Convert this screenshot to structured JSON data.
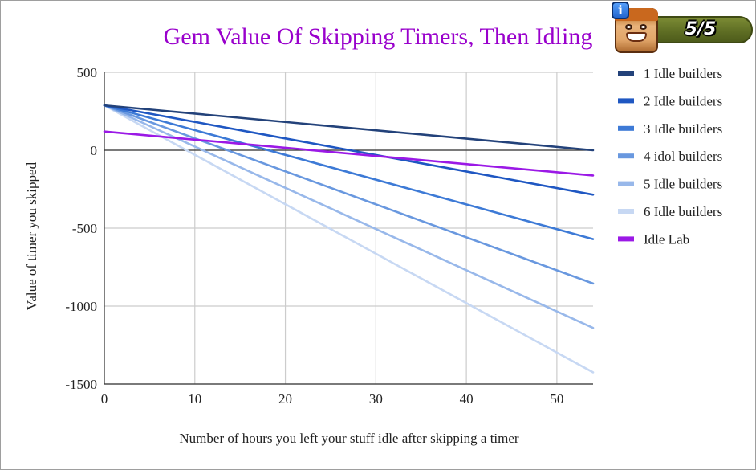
{
  "builder_badge": {
    "count_text": "5/5",
    "info_icon": "info-icon",
    "avatar_icon": "builder-face-icon"
  },
  "chart_data": {
    "type": "line",
    "title": "Gem Value Of Skipping Timers, Then Idling",
    "title_color": "#9900cc",
    "xlabel": "Number of hours you left your stuff idle after skipping a timer",
    "ylabel": "Value of timer you skipped",
    "xlim": [
      0,
      54
    ],
    "ylim": [
      -1500,
      500
    ],
    "x_ticks": [
      0,
      10,
      20,
      30,
      40,
      50
    ],
    "y_ticks": [
      500,
      0,
      -500,
      -1000,
      -1500
    ],
    "grid": true,
    "legend_position": "right",
    "series": [
      {
        "name": "1 Idle builders",
        "color": "#23427a",
        "x": [
          0,
          54
        ],
        "y": [
          288,
          0
        ]
      },
      {
        "name": "2 Idle builders",
        "color": "#1f57c2",
        "x": [
          0,
          54
        ],
        "y": [
          288,
          -285
        ]
      },
      {
        "name": "3 Idle builders",
        "color": "#3d7ad6",
        "x": [
          0,
          54
        ],
        "y": [
          288,
          -570
        ]
      },
      {
        "name": "4 idol builders",
        "color": "#6998df",
        "x": [
          0,
          54
        ],
        "y": [
          288,
          -855
        ]
      },
      {
        "name": "5 Idle builders",
        "color": "#98b8ea",
        "x": [
          0,
          54
        ],
        "y": [
          288,
          -1140
        ]
      },
      {
        "name": "6 Idle builders",
        "color": "#c7d8f3",
        "x": [
          0,
          54
        ],
        "y": [
          288,
          -1425
        ]
      },
      {
        "name": "Idle Lab",
        "color": "#9b19e6",
        "x": [
          0,
          54
        ],
        "y": [
          120,
          -162
        ]
      }
    ]
  }
}
